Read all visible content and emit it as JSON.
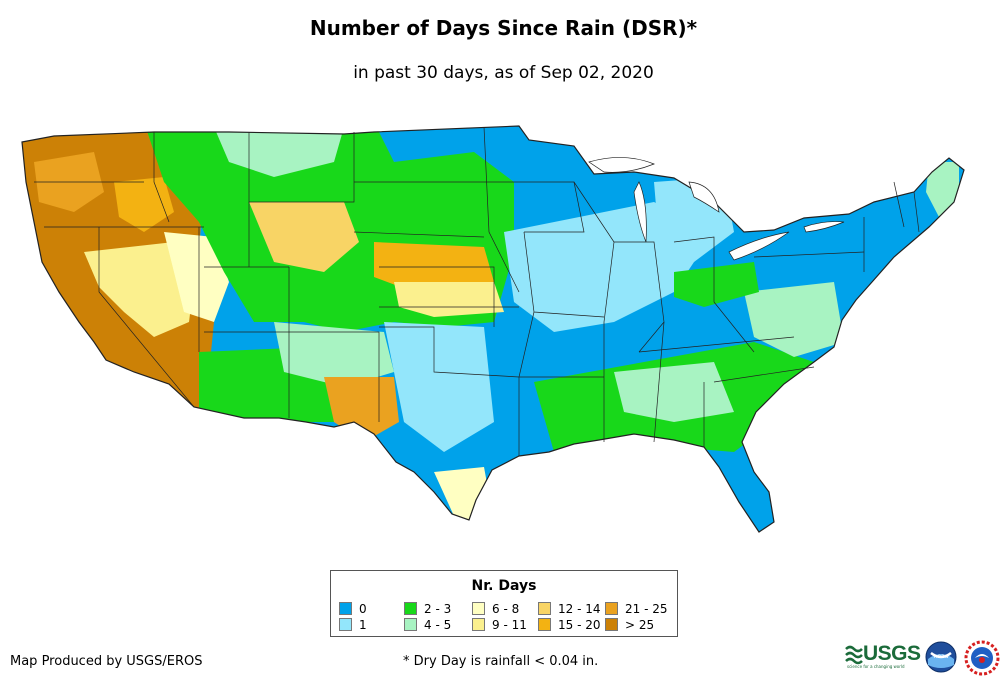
{
  "title": "Number of Days Since Rain (DSR)*",
  "subtitle": "in past 30 days, as of Sep 02, 2020",
  "legend": {
    "title": "Nr. Days",
    "items": [
      {
        "label": "0",
        "color": "#00a2ea"
      },
      {
        "label": "1",
        "color": "#93e6fb"
      },
      {
        "label": "2 - 3",
        "color": "#18d81a"
      },
      {
        "label": "4 - 5",
        "color": "#a8f3c2"
      },
      {
        "label": "6 - 8",
        "color": "#ffffc2"
      },
      {
        "label": "9 - 11",
        "color": "#fbf08e"
      },
      {
        "label": "12 - 14",
        "color": "#f8d465"
      },
      {
        "label": "15 - 20",
        "color": "#f3b212"
      },
      {
        "label": "21 - 25",
        "color": "#eaa220"
      },
      {
        "label": "> 25",
        "color": "#cc8106"
      }
    ]
  },
  "producer": "Map Produced by USGS/EROS",
  "footnote": "* Dry Day is rainfall < 0.04 in.",
  "logos": {
    "usgs": "USGS",
    "usgs_tagline": "science for a changing world",
    "noaa": "noaa"
  }
}
